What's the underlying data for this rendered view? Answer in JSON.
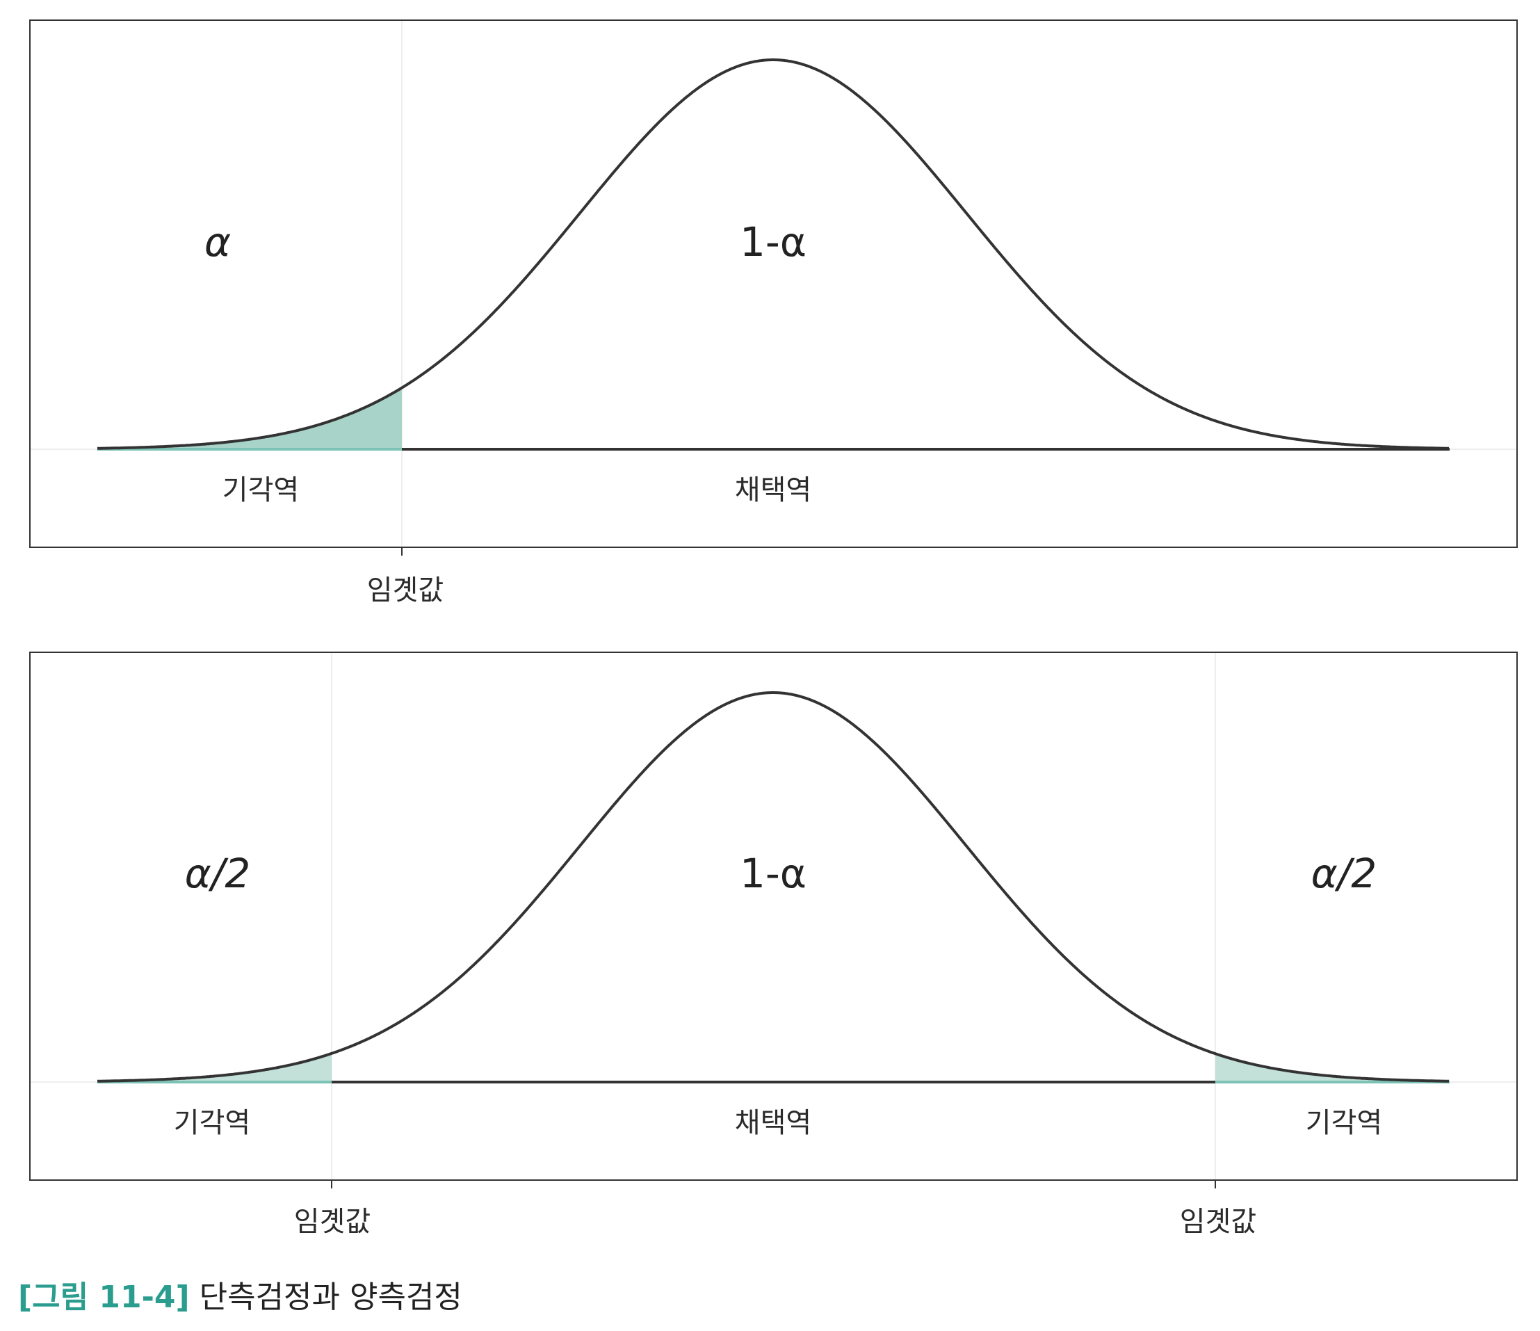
{
  "colors": {
    "curve": "#333333",
    "shade_one_sided": "#a8d3c9",
    "shade_two_sided": "#c3e0d9",
    "baseline_shade": "#7cc3b5",
    "frame": "#333333",
    "gridline": "#eeeeee",
    "caption_accent": "#2a9d8f"
  },
  "panels": [
    {
      "test": "one-sided",
      "tail_area_labels": [
        "α"
      ],
      "center_area_label": "1-α",
      "rejection_labels": [
        "기각역"
      ],
      "acceptance_label": "채택역",
      "critical_labels": [
        "임곗값"
      ]
    },
    {
      "test": "two-sided",
      "tail_area_labels": [
        "α/2",
        "α/2"
      ],
      "center_area_label": "1-α",
      "rejection_labels": [
        "기각역",
        "기각역"
      ],
      "acceptance_label": "채택역",
      "critical_labels": [
        "임곗값",
        "임곗값"
      ]
    }
  ],
  "caption": {
    "number": "[그림 11-4]",
    "text": "단측검정과 양측검정"
  }
}
